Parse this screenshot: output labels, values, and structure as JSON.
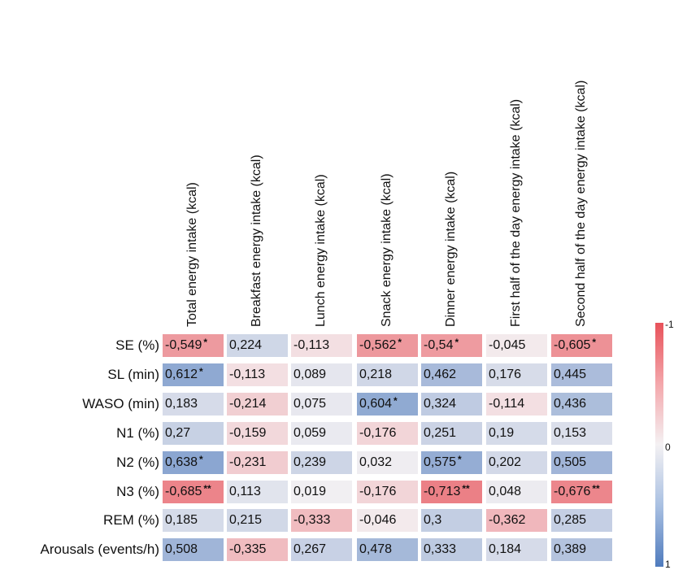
{
  "chart_data": {
    "type": "heatmap",
    "columns": [
      "Total energy intake (kcal)",
      "Breakfast energy intake (kcal)",
      "Lunch energy intake (kcal)",
      "Snack energy intake (kcal)",
      "Dinner energy intake (kcal)",
      "First half of the day energy intake (kcal)",
      "Second half of the day energy intake (kcal)"
    ],
    "rows": [
      "SE (%)",
      "SL (min)",
      "WASO (min)",
      "N1 (%)",
      "N2 (%)",
      "N3 (%)",
      "REM (%)",
      "Arousals (events/h)"
    ],
    "cells": [
      [
        {
          "v": -0.549,
          "t": "-0,549",
          "s": "*"
        },
        {
          "v": 0.224,
          "t": "0,224",
          "s": ""
        },
        {
          "v": -0.113,
          "t": "-0,113",
          "s": ""
        },
        {
          "v": -0.562,
          "t": "-0,562",
          "s": "*"
        },
        {
          "v": -0.54,
          "t": "-0,54",
          "s": "*"
        },
        {
          "v": -0.045,
          "t": "-0,045",
          "s": ""
        },
        {
          "v": -0.605,
          "t": "-0,605",
          "s": "*"
        }
      ],
      [
        {
          "v": 0.612,
          "t": "0,612",
          "s": "*"
        },
        {
          "v": -0.113,
          "t": "-0,113",
          "s": ""
        },
        {
          "v": 0.089,
          "t": "0,089",
          "s": ""
        },
        {
          "v": 0.218,
          "t": "0,218",
          "s": ""
        },
        {
          "v": 0.462,
          "t": "0,462",
          "s": ""
        },
        {
          "v": 0.176,
          "t": "0,176",
          "s": ""
        },
        {
          "v": 0.445,
          "t": "0,445",
          "s": ""
        }
      ],
      [
        {
          "v": 0.183,
          "t": "0,183",
          "s": ""
        },
        {
          "v": -0.214,
          "t": "-0,214",
          "s": ""
        },
        {
          "v": 0.075,
          "t": "0,075",
          "s": ""
        },
        {
          "v": 0.604,
          "t": "0,604",
          "s": "*"
        },
        {
          "v": 0.324,
          "t": "0,324",
          "s": ""
        },
        {
          "v": -0.114,
          "t": "-0,114",
          "s": ""
        },
        {
          "v": 0.436,
          "t": "0,436",
          "s": ""
        }
      ],
      [
        {
          "v": 0.27,
          "t": "0,27",
          "s": ""
        },
        {
          "v": -0.159,
          "t": "-0,159",
          "s": ""
        },
        {
          "v": 0.059,
          "t": "0,059",
          "s": ""
        },
        {
          "v": -0.176,
          "t": "-0,176",
          "s": ""
        },
        {
          "v": 0.251,
          "t": "0,251",
          "s": ""
        },
        {
          "v": 0.19,
          "t": "0,19",
          "s": ""
        },
        {
          "v": 0.153,
          "t": "0,153",
          "s": ""
        }
      ],
      [
        {
          "v": 0.638,
          "t": "0,638",
          "s": "*"
        },
        {
          "v": -0.231,
          "t": "-0,231",
          "s": ""
        },
        {
          "v": 0.239,
          "t": "0,239",
          "s": ""
        },
        {
          "v": 0.032,
          "t": "0,032",
          "s": ""
        },
        {
          "v": 0.575,
          "t": "0,575",
          "s": "*"
        },
        {
          "v": 0.202,
          "t": "0,202",
          "s": ""
        },
        {
          "v": 0.505,
          "t": "0,505",
          "s": ""
        }
      ],
      [
        {
          "v": -0.685,
          "t": "-0,685",
          "s": "**"
        },
        {
          "v": 0.113,
          "t": "0,113",
          "s": ""
        },
        {
          "v": 0.019,
          "t": "0,019",
          "s": ""
        },
        {
          "v": -0.176,
          "t": "-0,176",
          "s": ""
        },
        {
          "v": -0.713,
          "t": "-0,713",
          "s": "**"
        },
        {
          "v": 0.048,
          "t": "0,048",
          "s": ""
        },
        {
          "v": -0.676,
          "t": "-0,676",
          "s": "**"
        }
      ],
      [
        {
          "v": 0.185,
          "t": "0,185",
          "s": ""
        },
        {
          "v": 0.215,
          "t": "0,215",
          "s": ""
        },
        {
          "v": -0.333,
          "t": "-0,333",
          "s": ""
        },
        {
          "v": -0.046,
          "t": "-0,046",
          "s": ""
        },
        {
          "v": 0.3,
          "t": "0,3",
          "s": ""
        },
        {
          "v": -0.362,
          "t": "-0,362",
          "s": ""
        },
        {
          "v": 0.285,
          "t": "0,285",
          "s": ""
        }
      ],
      [
        {
          "v": 0.508,
          "t": "0,508",
          "s": ""
        },
        {
          "v": -0.335,
          "t": "-0,335",
          "s": ""
        },
        {
          "v": 0.267,
          "t": "0,267",
          "s": ""
        },
        {
          "v": 0.478,
          "t": "0,478",
          "s": ""
        },
        {
          "v": 0.333,
          "t": "0,333",
          "s": ""
        },
        {
          "v": 0.184,
          "t": "0,184",
          "s": ""
        },
        {
          "v": 0.389,
          "t": "0,389",
          "s": ""
        }
      ]
    ],
    "scale": {
      "min": -1,
      "max": 1,
      "ticks": [
        "-1",
        "0",
        "1"
      ]
    },
    "colors": {
      "negative": "#e8525a",
      "neutral": "#f4f1f3",
      "positive": "#4f7bbd"
    }
  }
}
